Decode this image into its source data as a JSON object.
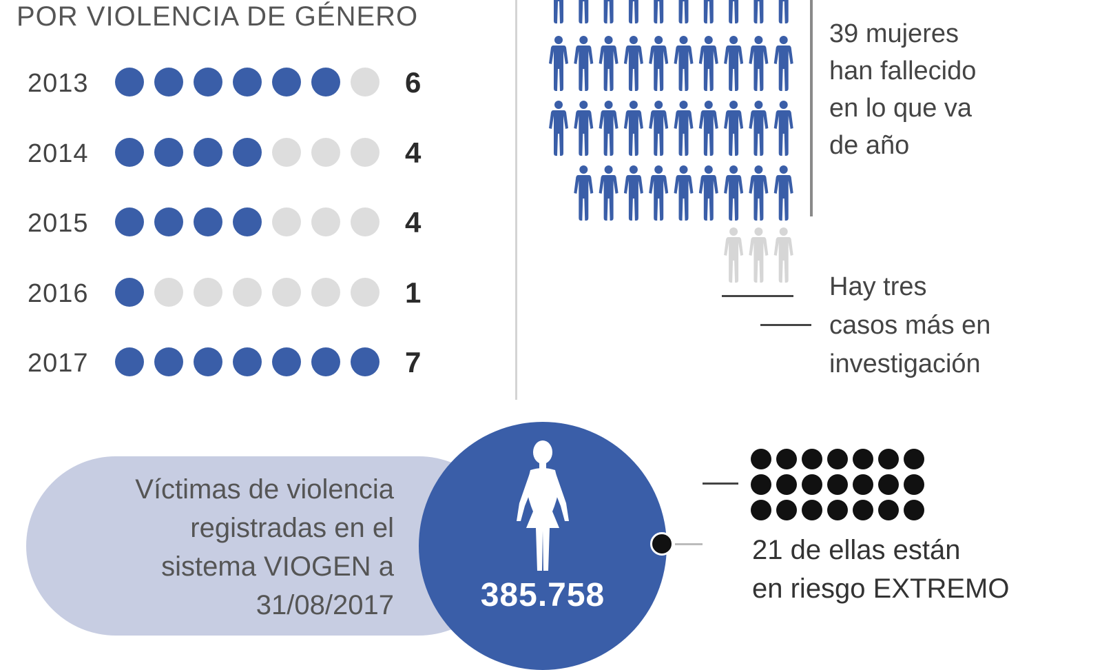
{
  "heading": "POR VIOLENCIA DE GÉNERO",
  "colors": {
    "accent": "#3a5ea8",
    "inactive": "#dddddd",
    "pill": "#c7cde2",
    "figure_investigation": "#d6d6d6",
    "risk_dot": "#111111"
  },
  "chart_data": {
    "type": "dot-matrix",
    "categories": [
      "2013",
      "2014",
      "2015",
      "2016",
      "2017"
    ],
    "values": [
      6,
      4,
      4,
      1,
      7
    ],
    "max_dots": 7
  },
  "deaths": {
    "count": 39,
    "lines": [
      "39 mujeres",
      "han fallecido",
      "en lo que va",
      "de año"
    ],
    "under_investigation": 3,
    "investigation_lines": [
      "Hay tres",
      "casos más en",
      "investigación"
    ]
  },
  "victims": {
    "label_lines": [
      "Víctimas de violencia",
      "registradas en el",
      "sistema VIOGEN a",
      "31/08/2017"
    ],
    "total": "385.758",
    "extreme_risk_count": 21,
    "risk_line1": "21 de ellas están",
    "risk_line2_prefix": "en riesgo ",
    "risk_line2_emph": "EXTREMO"
  }
}
